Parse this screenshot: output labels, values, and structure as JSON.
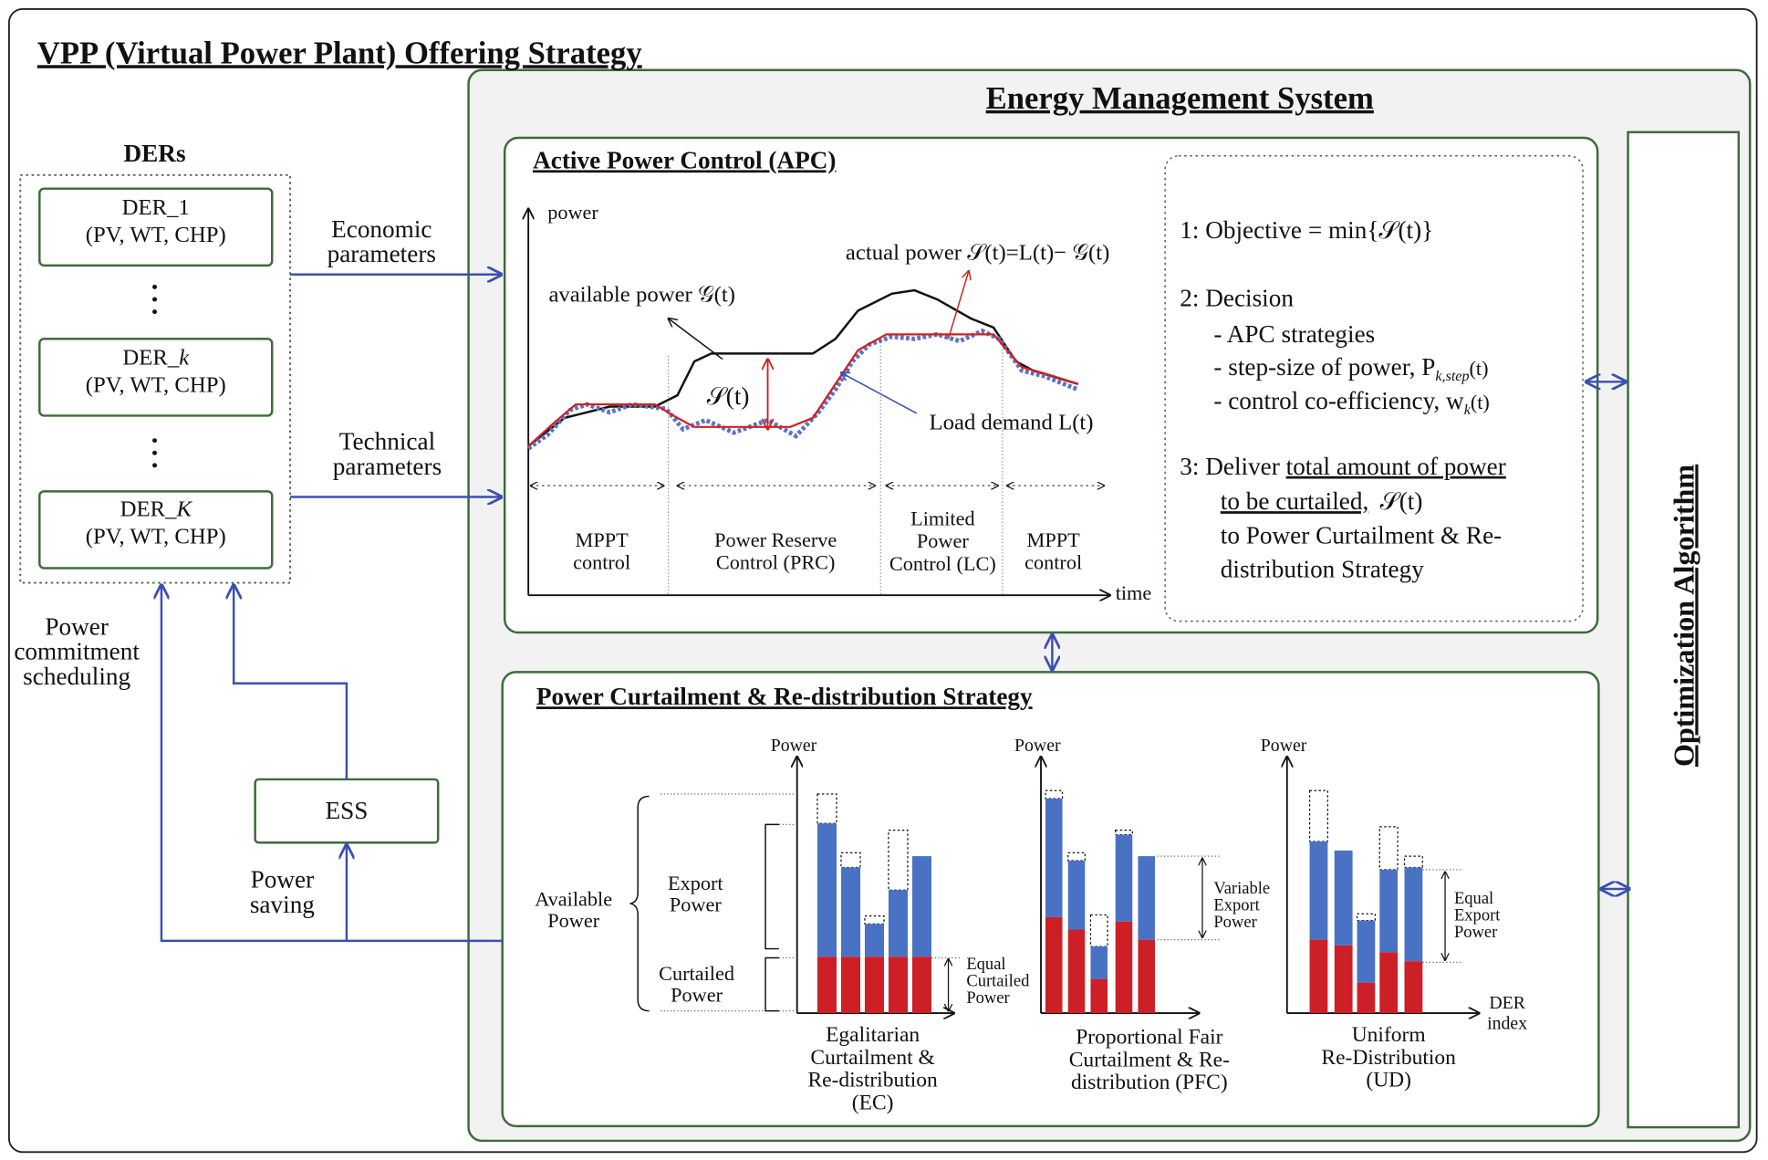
{
  "title": "VPP (Virtual Power Plant) Offering Strategy",
  "ders": {
    "title": "DERs",
    "items": [
      {
        "name": "DER_",
        "index": "1",
        "detail": "(PV, WT, CHP)"
      },
      {
        "name": "DER_",
        "index": "k",
        "detail": "(PV, WT, CHP)"
      },
      {
        "name": "DER_",
        "index": "K",
        "detail": "(PV, WT, CHP)"
      }
    ]
  },
  "links": {
    "economic": [
      "Economic",
      "parameters"
    ],
    "technical": [
      "Technical",
      "parameters"
    ],
    "commitment": [
      "Power",
      "commitment",
      "scheduling"
    ],
    "saving": [
      "Power",
      "saving"
    ]
  },
  "ess": "ESS",
  "ems": {
    "title": "Energy Management System",
    "optimization": "Optimization Algorithm"
  },
  "apc": {
    "title": "Active Power Control (APC)",
    "axis_y": "power",
    "axis_x": "time",
    "available": "available power 𝒢(t)",
    "actual": "actual power 𝒮(t)=L(t)− 𝒢(t)",
    "gap": "𝒮(t)",
    "load": "Load demand L(t)",
    "regions": [
      [
        "MPPT",
        "control"
      ],
      [
        "Power Reserve",
        "Control (PRC)"
      ],
      [
        "Limited",
        "Power",
        "Control (LC)"
      ],
      [
        "MPPT",
        "control"
      ]
    ],
    "steps": {
      "objective": "1:  Objective = min{𝒮(t)}",
      "decision": "2:  Decision",
      "options": [
        "- APC strategies",
        "- step-size of power, P",
        "- control co-efficiency, w"
      ],
      "option_symbols": [
        "k,step",
        "(t)",
        "k",
        "(t)"
      ],
      "deliver_prefix": "3:  Deliver ",
      "deliver_underlined": [
        "total amount of power",
        "to be curtailed,"
      ],
      "deliver_symbol": "𝒮(t)",
      "deliver_rest": [
        "to Power Curtailment & Re-",
        "distribution Strategy"
      ]
    }
  },
  "pcr": {
    "title": "Power Curtailment & Re-distribution Strategy",
    "axis_y": [
      "Power",
      "Power",
      "Power"
    ],
    "available": [
      "Available",
      "Power"
    ],
    "export": [
      "Export",
      "Power"
    ],
    "curtailed": [
      "Curtailed",
      "Power"
    ],
    "equal_curtailed": [
      "Equal",
      "Curtailed",
      "Power"
    ],
    "variable_export": [
      "Variable",
      "Export",
      "Power"
    ],
    "equal_export": [
      "Equal",
      "Export",
      "Power"
    ],
    "axis_x": [
      "DER",
      "index"
    ],
    "captions": [
      [
        "Egalitarian",
        "Curtailment &",
        "Re-distribution",
        "(EC)"
      ],
      [
        "Proportional Fair",
        "Curtailment & Re-",
        "distribution (PFC)"
      ],
      [
        "Uniform",
        "Re-Distribution",
        "(UD)"
      ]
    ]
  }
}
